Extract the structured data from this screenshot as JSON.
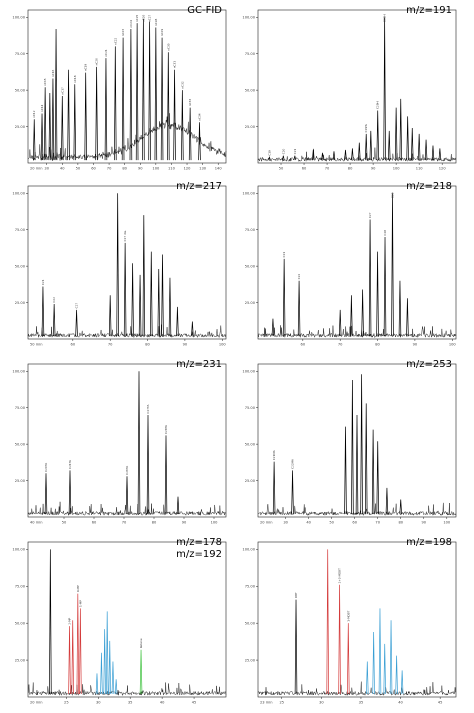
{
  "chart_data": [
    {
      "id": "p0",
      "type": "line",
      "title": "GC-FID",
      "x_unit_label": "20 min",
      "xlim": [
        18,
        145
      ],
      "x_ticks": [
        30,
        40,
        50,
        60,
        70,
        80,
        90,
        100,
        110,
        120,
        130,
        140
      ],
      "ylim": [
        0,
        105
      ],
      "y_ticks": [
        25,
        50,
        75,
        100
      ],
      "y_tick_labels": [
        "25.00",
        "50.00",
        "75.00",
        "100.00"
      ],
      "grid": false,
      "legend": "none",
      "envelope": {
        "center": 108,
        "width": 24,
        "height": 22
      },
      "peaks": [
        {
          "x": 22,
          "y": 30,
          "label": "nC12",
          "color": "#000000"
        },
        {
          "x": 27,
          "y": 34,
          "label": "nC14",
          "color": "#000000"
        },
        {
          "x": 29,
          "y": 52,
          "label": "nC15",
          "color": "#000000"
        },
        {
          "x": 32,
          "y": 48,
          "label": "",
          "color": "#000000"
        },
        {
          "x": 34,
          "y": 58,
          "label": "nC16",
          "color": "#000000"
        },
        {
          "x": 36,
          "y": 92,
          "label": "",
          "color": "#000000"
        },
        {
          "x": 40,
          "y": 46,
          "label": "nC17",
          "color": "#000000"
        },
        {
          "x": 44,
          "y": 64,
          "label": "",
          "color": "#000000"
        },
        {
          "x": 48,
          "y": 54,
          "label": "nC18",
          "color": "#000000"
        },
        {
          "x": 55,
          "y": 62,
          "label": "nC19",
          "color": "#000000"
        },
        {
          "x": 62,
          "y": 66,
          "label": "nC20",
          "color": "#000000"
        },
        {
          "x": 68,
          "y": 72,
          "label": "nC21",
          "color": "#000000"
        },
        {
          "x": 74,
          "y": 80,
          "label": "nC22",
          "color": "#000000"
        },
        {
          "x": 79,
          "y": 86,
          "label": "nC23",
          "color": "#000000"
        },
        {
          "x": 84,
          "y": 92,
          "label": "nC24",
          "color": "#000000"
        },
        {
          "x": 88,
          "y": 96,
          "label": "nC25",
          "color": "#000000"
        },
        {
          "x": 92,
          "y": 99,
          "label": "nC26",
          "color": "#000000"
        },
        {
          "x": 96,
          "y": 97,
          "label": "nC27",
          "color": "#000000"
        },
        {
          "x": 100,
          "y": 93,
          "label": "nC28",
          "color": "#000000"
        },
        {
          "x": 104,
          "y": 86,
          "label": "nC29",
          "color": "#000000"
        },
        {
          "x": 108,
          "y": 76,
          "label": "nC30",
          "color": "#000000"
        },
        {
          "x": 112,
          "y": 64,
          "label": "nC31",
          "color": "#000000"
        },
        {
          "x": 117,
          "y": 50,
          "label": "nC32",
          "color": "#000000"
        },
        {
          "x": 122,
          "y": 38,
          "label": "nC33",
          "color": "#000000"
        },
        {
          "x": 128,
          "y": 28,
          "label": "nC34",
          "color": "#000000"
        }
      ]
    },
    {
      "id": "p1",
      "type": "line",
      "title": "m/z=191",
      "x_unit_label": "",
      "xlim": [
        40,
        126
      ],
      "x_ticks": [
        50,
        60,
        70,
        80,
        90,
        100,
        110,
        120
      ],
      "ylim": [
        0,
        105
      ],
      "y_ticks": [
        25,
        50,
        75,
        100
      ],
      "y_tick_labels": [
        "25.00",
        "50.00",
        "75.00",
        "100.00"
      ],
      "grid": false,
      "legend": "none",
      "peaks": [
        {
          "x": 45,
          "y": 4,
          "label": "C19",
          "color": "#000000"
        },
        {
          "x": 51,
          "y": 5,
          "label": "C20",
          "color": "#000000"
        },
        {
          "x": 56,
          "y": 5,
          "label": "C21",
          "color": "#000000"
        },
        {
          "x": 64,
          "y": 9,
          "label": "",
          "color": "#000000"
        },
        {
          "x": 68,
          "y": 7,
          "label": "",
          "color": "#000000"
        },
        {
          "x": 73,
          "y": 8,
          "label": "",
          "color": "#000000"
        },
        {
          "x": 78,
          "y": 9,
          "label": "",
          "color": "#000000"
        },
        {
          "x": 81,
          "y": 10,
          "label": "",
          "color": "#000000"
        },
        {
          "x": 84,
          "y": 14,
          "label": "",
          "color": "#000000"
        },
        {
          "x": 87,
          "y": 20,
          "label": "C29Ts",
          "color": "#000000"
        },
        {
          "x": 89,
          "y": 22,
          "label": "",
          "color": "#000000"
        },
        {
          "x": 92,
          "y": 36,
          "label": "C29H",
          "color": "#000000"
        },
        {
          "x": 95,
          "y": 100,
          "label": "C30H",
          "color": "#000000"
        },
        {
          "x": 97,
          "y": 22,
          "label": "",
          "color": "#000000"
        },
        {
          "x": 100,
          "y": 38,
          "label": "",
          "color": "#000000"
        },
        {
          "x": 102,
          "y": 44,
          "label": "",
          "color": "#000000"
        },
        {
          "x": 105,
          "y": 32,
          "label": "",
          "color": "#000000"
        },
        {
          "x": 107,
          "y": 24,
          "label": "",
          "color": "#000000"
        },
        {
          "x": 110,
          "y": 20,
          "label": "",
          "color": "#000000"
        },
        {
          "x": 113,
          "y": 16,
          "label": "",
          "color": "#000000"
        },
        {
          "x": 116,
          "y": 12,
          "label": "",
          "color": "#000000"
        },
        {
          "x": 119,
          "y": 10,
          "label": "",
          "color": "#000000"
        }
      ]
    },
    {
      "id": "p2",
      "type": "line",
      "title": "m/z=217",
      "x_unit_label": "50 min",
      "xlim": [
        48,
        101
      ],
      "x_ticks": [
        60,
        70,
        80,
        90,
        100
      ],
      "ylim": [
        0,
        105
      ],
      "y_ticks": [
        25,
        50,
        75,
        100
      ],
      "y_tick_labels": [
        "25.00",
        "50.00",
        "75.00",
        "100.00"
      ],
      "grid": false,
      "legend": "none",
      "peaks": [
        {
          "x": 52,
          "y": 36,
          "label": "C21",
          "color": "#000000"
        },
        {
          "x": 55,
          "y": 24,
          "label": "C22",
          "color": "#000000"
        },
        {
          "x": 61,
          "y": 20,
          "label": "C27",
          "color": "#000000"
        },
        {
          "x": 70,
          "y": 30,
          "label": "",
          "color": "#000000"
        },
        {
          "x": 72,
          "y": 100,
          "label": "",
          "color": "#000000"
        },
        {
          "x": 74,
          "y": 66,
          "label": "C27 dia",
          "color": "#000000"
        },
        {
          "x": 76,
          "y": 52,
          "label": "",
          "color": "#000000"
        },
        {
          "x": 78,
          "y": 44,
          "label": "",
          "color": "#000000"
        },
        {
          "x": 79,
          "y": 85,
          "label": "",
          "color": "#000000"
        },
        {
          "x": 81,
          "y": 60,
          "label": "",
          "color": "#000000"
        },
        {
          "x": 83,
          "y": 48,
          "label": "",
          "color": "#000000"
        },
        {
          "x": 84,
          "y": 58,
          "label": "",
          "color": "#000000"
        },
        {
          "x": 86,
          "y": 42,
          "label": "",
          "color": "#000000"
        },
        {
          "x": 88,
          "y": 22,
          "label": "",
          "color": "#000000"
        },
        {
          "x": 92,
          "y": 12,
          "label": "",
          "color": "#000000"
        }
      ]
    },
    {
      "id": "p3",
      "type": "line",
      "title": "m/z=218",
      "x_unit_label": "",
      "xlim": [
        48,
        101
      ],
      "x_ticks": [
        60,
        70,
        80,
        90,
        100
      ],
      "ylim": [
        0,
        105
      ],
      "y_ticks": [
        25,
        50,
        75,
        100
      ],
      "y_tick_labels": [
        "25.00",
        "50.00",
        "75.00",
        "100.00"
      ],
      "grid": false,
      "legend": "none",
      "peaks": [
        {
          "x": 52,
          "y": 14,
          "label": "",
          "color": "#000000"
        },
        {
          "x": 55,
          "y": 55,
          "label": "C21",
          "color": "#000000"
        },
        {
          "x": 59,
          "y": 40,
          "label": "C22",
          "color": "#000000"
        },
        {
          "x": 70,
          "y": 20,
          "label": "",
          "color": "#000000"
        },
        {
          "x": 73,
          "y": 30,
          "label": "",
          "color": "#000000"
        },
        {
          "x": 76,
          "y": 34,
          "label": "",
          "color": "#000000"
        },
        {
          "x": 78,
          "y": 82,
          "label": "C27",
          "color": "#000000"
        },
        {
          "x": 80,
          "y": 60,
          "label": "",
          "color": "#000000"
        },
        {
          "x": 82,
          "y": 70,
          "label": "C28",
          "color": "#000000"
        },
        {
          "x": 84,
          "y": 100,
          "label": "C29",
          "color": "#000000"
        },
        {
          "x": 86,
          "y": 40,
          "label": "",
          "color": "#000000"
        },
        {
          "x": 88,
          "y": 28,
          "label": "",
          "color": "#000000"
        }
      ]
    },
    {
      "id": "p4",
      "type": "line",
      "title": "m/z=231",
      "x_unit_label": "40 min",
      "xlim": [
        38,
        104
      ],
      "x_ticks": [
        50,
        60,
        70,
        80,
        90,
        100
      ],
      "ylim": [
        0,
        105
      ],
      "y_ticks": [
        25,
        50,
        75,
        100
      ],
      "y_tick_labels": [
        "25.00",
        "50.00",
        "75.00",
        "100.00"
      ],
      "grid": false,
      "legend": "none",
      "peaks": [
        {
          "x": 44,
          "y": 30,
          "label": "C20TA",
          "color": "#000000"
        },
        {
          "x": 52,
          "y": 32,
          "label": "C21TA",
          "color": "#000000"
        },
        {
          "x": 71,
          "y": 28,
          "label": "C26TA",
          "color": "#000000"
        },
        {
          "x": 75,
          "y": 100,
          "label": "",
          "color": "#000000"
        },
        {
          "x": 78,
          "y": 70,
          "label": "C27TA",
          "color": "#000000"
        },
        {
          "x": 84,
          "y": 56,
          "label": "C28TA",
          "color": "#000000"
        },
        {
          "x": 88,
          "y": 14,
          "label": "",
          "color": "#000000"
        }
      ]
    },
    {
      "id": "p5",
      "type": "line",
      "title": "m/z=253",
      "x_unit_label": "20 min",
      "xlim": [
        18,
        104
      ],
      "x_ticks": [
        30,
        40,
        50,
        60,
        70,
        80,
        90,
        100
      ],
      "ylim": [
        0,
        105
      ],
      "y_ticks": [
        25,
        50,
        75,
        100
      ],
      "y_tick_labels": [
        "25.00",
        "50.00",
        "75.00",
        "100.00"
      ],
      "grid": false,
      "legend": "none",
      "peaks": [
        {
          "x": 25,
          "y": 38,
          "label": "C21MA",
          "color": "#000000"
        },
        {
          "x": 33,
          "y": 32,
          "label": "C22MA",
          "color": "#000000"
        },
        {
          "x": 56,
          "y": 62,
          "label": "",
          "color": "#000000"
        },
        {
          "x": 59,
          "y": 94,
          "label": "",
          "color": "#000000"
        },
        {
          "x": 61,
          "y": 70,
          "label": "",
          "color": "#000000"
        },
        {
          "x": 63,
          "y": 98,
          "label": "",
          "color": "#000000"
        },
        {
          "x": 65,
          "y": 78,
          "label": "",
          "color": "#000000"
        },
        {
          "x": 68,
          "y": 60,
          "label": "",
          "color": "#000000"
        },
        {
          "x": 70,
          "y": 52,
          "label": "",
          "color": "#000000"
        },
        {
          "x": 74,
          "y": 20,
          "label": "",
          "color": "#000000"
        },
        {
          "x": 80,
          "y": 12,
          "label": "",
          "color": "#000000"
        }
      ]
    },
    {
      "id": "p6",
      "type": "line",
      "title": "m/z=178",
      "title2": "m/z=192",
      "x_unit_label": "20 min",
      "xlim": [
        19,
        50
      ],
      "x_ticks": [
        25,
        30,
        35,
        40,
        45
      ],
      "ylim": [
        0,
        105
      ],
      "y_ticks": [
        25,
        50,
        75,
        100
      ],
      "y_tick_labels": [
        "25.00",
        "50.00",
        "75.00",
        "100.00"
      ],
      "grid": false,
      "legend": "none",
      "peaks": [
        {
          "x": 22.5,
          "y": 100,
          "label": "",
          "color": "#000000"
        },
        {
          "x": 25.5,
          "y": 48,
          "label": "2-MP",
          "color": "#d43a3a"
        },
        {
          "x": 26.0,
          "y": 52,
          "label": "",
          "color": "#d43a3a"
        },
        {
          "x": 26.8,
          "y": 70,
          "label": "9-MP",
          "color": "#d43a3a"
        },
        {
          "x": 27.2,
          "y": 60,
          "label": "1-MP",
          "color": "#d43a3a"
        },
        {
          "x": 29.8,
          "y": 16,
          "label": "",
          "color": "#3a9fd4"
        },
        {
          "x": 30.5,
          "y": 30,
          "label": "",
          "color": "#3a9fd4"
        },
        {
          "x": 31.0,
          "y": 46,
          "label": "",
          "color": "#3a9fd4"
        },
        {
          "x": 31.4,
          "y": 58,
          "label": "",
          "color": "#3a9fd4"
        },
        {
          "x": 31.8,
          "y": 38,
          "label": "",
          "color": "#3a9fd4"
        },
        {
          "x": 32.3,
          "y": 24,
          "label": "",
          "color": "#3a9fd4"
        },
        {
          "x": 32.8,
          "y": 12,
          "label": "",
          "color": "#3a9fd4"
        },
        {
          "x": 36.7,
          "y": 32,
          "label": "Retene",
          "color": "#3fc23f"
        }
      ]
    },
    {
      "id": "p7",
      "type": "line",
      "title": "m/z=198",
      "x_unit_label": "23 min",
      "xlim": [
        22,
        47
      ],
      "x_ticks": [
        25,
        30,
        35,
        40,
        45
      ],
      "ylim": [
        0,
        105
      ],
      "y_ticks": [
        25,
        50,
        75,
        100
      ],
      "y_tick_labels": [
        "25.00",
        "50.00",
        "75.00",
        "100.00"
      ],
      "grid": false,
      "legend": "none",
      "peaks": [
        {
          "x": 26.8,
          "y": 66,
          "label": "DBT",
          "color": "#000000"
        },
        {
          "x": 30.8,
          "y": 100,
          "label": "",
          "color": "#d43a3a"
        },
        {
          "x": 32.3,
          "y": 76,
          "label": "2+3-MDBT",
          "color": "#d43a3a"
        },
        {
          "x": 33.4,
          "y": 50,
          "label": "1-MDBT",
          "color": "#d43a3a"
        },
        {
          "x": 35.8,
          "y": 24,
          "label": "",
          "color": "#3a9fd4"
        },
        {
          "x": 36.6,
          "y": 44,
          "label": "",
          "color": "#3a9fd4"
        },
        {
          "x": 37.4,
          "y": 60,
          "label": "",
          "color": "#3a9fd4"
        },
        {
          "x": 38.0,
          "y": 36,
          "label": "",
          "color": "#3a9fd4"
        },
        {
          "x": 38.8,
          "y": 52,
          "label": "",
          "color": "#3a9fd4"
        },
        {
          "x": 39.5,
          "y": 28,
          "label": "",
          "color": "#3a9fd4"
        },
        {
          "x": 40.2,
          "y": 18,
          "label": "",
          "color": "#3a9fd4"
        }
      ]
    }
  ]
}
